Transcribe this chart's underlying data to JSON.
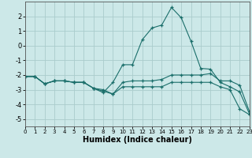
{
  "xlabel": "Humidex (Indice chaleur)",
  "background_color": "#cce8e8",
  "grid_color": "#aacccc",
  "line_color": "#1a6e6a",
  "xlim": [
    0,
    23
  ],
  "ylim": [
    -5.5,
    3.0
  ],
  "xticks": [
    0,
    1,
    2,
    3,
    4,
    5,
    6,
    7,
    8,
    9,
    10,
    11,
    12,
    13,
    14,
    15,
    16,
    17,
    18,
    19,
    20,
    21,
    22,
    23
  ],
  "yticks": [
    -5,
    -4,
    -3,
    -2,
    -1,
    0,
    1,
    2
  ],
  "series": [
    {
      "y": [
        -2.1,
        -2.1,
        -2.6,
        -2.4,
        -2.4,
        -2.5,
        -2.5,
        -2.9,
        -3.0,
        -3.3,
        -2.5,
        -2.4,
        -2.4,
        -2.4,
        -2.3,
        -2.0,
        -2.0,
        -2.0,
        -2.0,
        -1.9,
        -2.4,
        -2.4,
        -2.7,
        -4.5
      ]
    },
    {
      "y": [
        -2.1,
        -2.1,
        -2.6,
        -2.4,
        -2.4,
        -2.5,
        -2.5,
        -2.9,
        -3.1,
        -3.3,
        -2.8,
        -2.8,
        -2.8,
        -2.8,
        -2.8,
        -2.5,
        -2.5,
        -2.5,
        -2.5,
        -2.5,
        -2.8,
        -3.0,
        -4.3,
        -4.7
      ]
    },
    {
      "y": [
        -2.1,
        -2.1,
        -2.6,
        -2.4,
        -2.4,
        -2.5,
        -2.5,
        -2.9,
        -3.2,
        -2.5,
        -1.3,
        -1.3,
        0.4,
        1.2,
        1.4,
        2.6,
        1.9,
        0.3,
        -1.55,
        -1.6,
        -2.5,
        -2.8,
        -3.15,
        -4.65
      ]
    }
  ]
}
